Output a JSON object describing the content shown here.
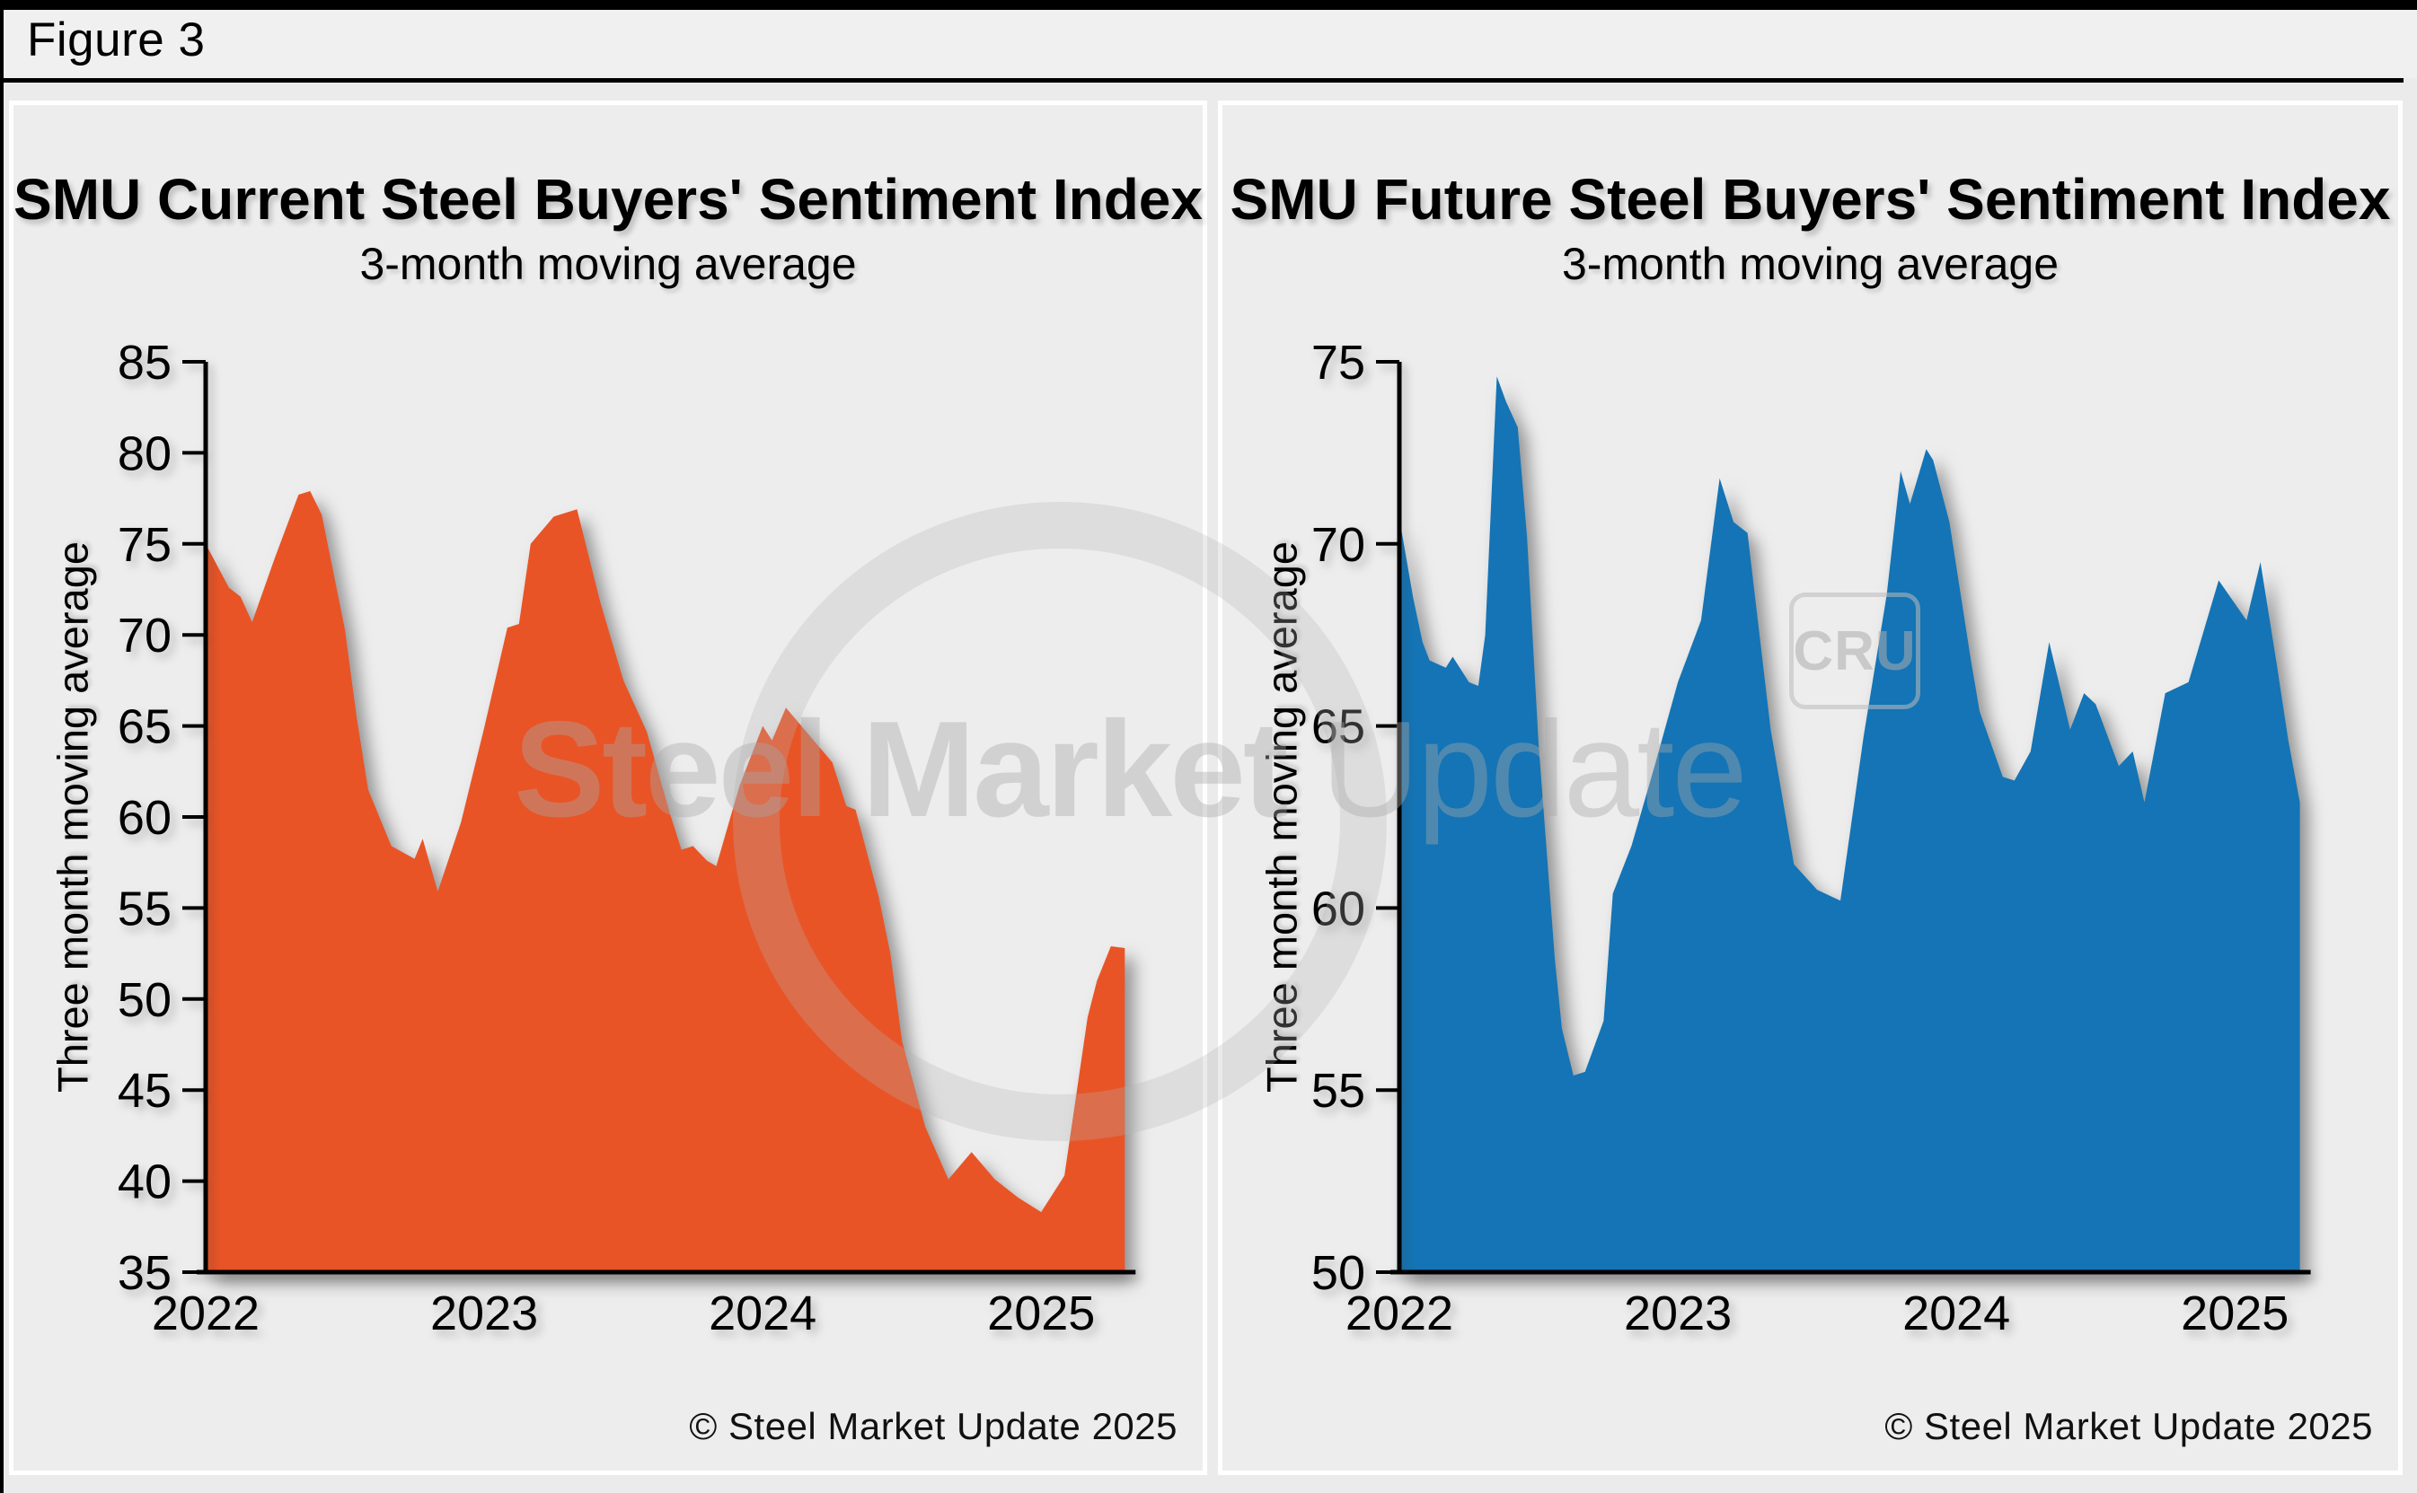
{
  "figure_label": "Figure 3",
  "watermark": {
    "brand_bold": "Steel Market",
    "brand_light": " Update",
    "cru_label": "CRU"
  },
  "chart_data": [
    {
      "type": "area",
      "title": "SMU Current Steel Buyers' Sentiment Index",
      "subtitle": "3-month moving average",
      "ylabel": "Three month moving average",
      "xlabel": "",
      "copyright": "© Steel Market Update 2025",
      "series_name": "SMU Current Steel Buyers Sentiment Index 3-month moving average",
      "color": "#E95426",
      "ylim": [
        35,
        85
      ],
      "yticks": [
        85,
        80,
        75,
        70,
        65,
        60,
        55,
        50,
        45,
        40,
        35
      ],
      "xticks": [
        {
          "label": "2022",
          "month": 0
        },
        {
          "label": "2023",
          "month": 12
        },
        {
          "label": "2024",
          "month": 24
        },
        {
          "label": "2025",
          "month": 36
        }
      ],
      "x_unit": "months since Jan 2022",
      "legend": "none",
      "grid": false,
      "points": [
        [
          0,
          75.0
        ],
        [
          1,
          72.6
        ],
        [
          1.5,
          72.1
        ],
        [
          2,
          70.7
        ],
        [
          3,
          74.3
        ],
        [
          4,
          77.7
        ],
        [
          4.5,
          77.9
        ],
        [
          5,
          76.6
        ],
        [
          6,
          70.3
        ],
        [
          6.5,
          65.5
        ],
        [
          7,
          61.5
        ],
        [
          8,
          58.4
        ],
        [
          9,
          57.7
        ],
        [
          9.35,
          58.8
        ],
        [
          10,
          55.9
        ],
        [
          11,
          59.7
        ],
        [
          12,
          64.9
        ],
        [
          13,
          70.4
        ],
        [
          13.5,
          70.6
        ],
        [
          14,
          75.0
        ],
        [
          15,
          76.5
        ],
        [
          16,
          76.9
        ],
        [
          17,
          71.8
        ],
        [
          18,
          67.5
        ],
        [
          19,
          64.7
        ],
        [
          20,
          60.2
        ],
        [
          20.5,
          58.2
        ],
        [
          21,
          58.4
        ],
        [
          21.6,
          57.6
        ],
        [
          22,
          57.3
        ],
        [
          23,
          61.7
        ],
        [
          24,
          65.0
        ],
        [
          24.4,
          64.2
        ],
        [
          25,
          66.0
        ],
        [
          26,
          64.5
        ],
        [
          27,
          63.0
        ],
        [
          27.6,
          60.6
        ],
        [
          28,
          60.4
        ],
        [
          29,
          55.6
        ],
        [
          29.5,
          52.5
        ],
        [
          30,
          47.7
        ],
        [
          31,
          43.0
        ],
        [
          32,
          40.1
        ],
        [
          33,
          41.6
        ],
        [
          34,
          40.1
        ],
        [
          35,
          39.1
        ],
        [
          36,
          38.3
        ],
        [
          37,
          40.3
        ],
        [
          38,
          49.0
        ],
        [
          38.4,
          51.0
        ],
        [
          39,
          52.9
        ],
        [
          39.6,
          52.8
        ]
      ]
    },
    {
      "type": "area",
      "title": "SMU Future Steel Buyers' Sentiment Index",
      "subtitle": "3-month moving average",
      "ylabel": "Three month moving average",
      "xlabel": "",
      "copyright": "© Steel Market Update 2025",
      "series_name": "SMU Future Steel Buyers Sentiment Index 3-month moving average",
      "color": "#1474B5",
      "ylim": [
        50,
        75
      ],
      "yticks": [
        75,
        70,
        65,
        60,
        55,
        50
      ],
      "xticks": [
        {
          "label": "2022",
          "month": 0
        },
        {
          "label": "2023",
          "month": 12
        },
        {
          "label": "2024",
          "month": 24
        },
        {
          "label": "2025",
          "month": 36
        }
      ],
      "x_unit": "months since Jan 2022",
      "legend": "none",
      "grid": false,
      "points": [
        [
          0,
          70.7
        ],
        [
          0.6,
          68.5
        ],
        [
          1,
          67.3
        ],
        [
          1.3,
          66.8
        ],
        [
          2,
          66.6
        ],
        [
          2.3,
          66.9
        ],
        [
          3,
          66.2
        ],
        [
          3.4,
          66.1
        ],
        [
          3.7,
          67.5
        ],
        [
          4.2,
          74.6
        ],
        [
          4.6,
          73.9
        ],
        [
          5.1,
          73.2
        ],
        [
          5.5,
          70.2
        ],
        [
          6,
          64.5
        ],
        [
          6.7,
          58.6
        ],
        [
          7,
          56.7
        ],
        [
          7.5,
          55.4
        ],
        [
          8,
          55.5
        ],
        [
          8.8,
          56.9
        ],
        [
          9.2,
          60.4
        ],
        [
          10,
          61.7
        ],
        [
          11,
          63.9
        ],
        [
          12,
          66.2
        ],
        [
          13,
          67.9
        ],
        [
          13.8,
          71.8
        ],
        [
          14.4,
          70.6
        ],
        [
          15,
          70.3
        ],
        [
          16,
          64.9
        ],
        [
          17,
          61.2
        ],
        [
          18,
          60.5
        ],
        [
          19,
          60.2
        ],
        [
          20,
          64.7
        ],
        [
          21,
          68.6
        ],
        [
          21.6,
          72.0
        ],
        [
          22,
          71.1
        ],
        [
          22.7,
          72.6
        ],
        [
          23,
          72.3
        ],
        [
          23.7,
          70.6
        ],
        [
          24.6,
          66.9
        ],
        [
          25,
          65.4
        ],
        [
          26,
          63.6
        ],
        [
          26.5,
          63.5
        ],
        [
          27.2,
          64.3
        ],
        [
          28,
          67.3
        ],
        [
          28.9,
          64.9
        ],
        [
          29.5,
          65.9
        ],
        [
          30,
          65.6
        ],
        [
          31,
          63.9
        ],
        [
          31.6,
          64.3
        ],
        [
          32.1,
          62.9
        ],
        [
          33,
          65.9
        ],
        [
          34,
          66.2
        ],
        [
          35.3,
          69.0
        ],
        [
          36.5,
          67.9
        ],
        [
          37.1,
          69.5
        ],
        [
          37.8,
          66.7
        ],
        [
          38.3,
          64.6
        ],
        [
          38.8,
          62.9
        ]
      ]
    }
  ]
}
